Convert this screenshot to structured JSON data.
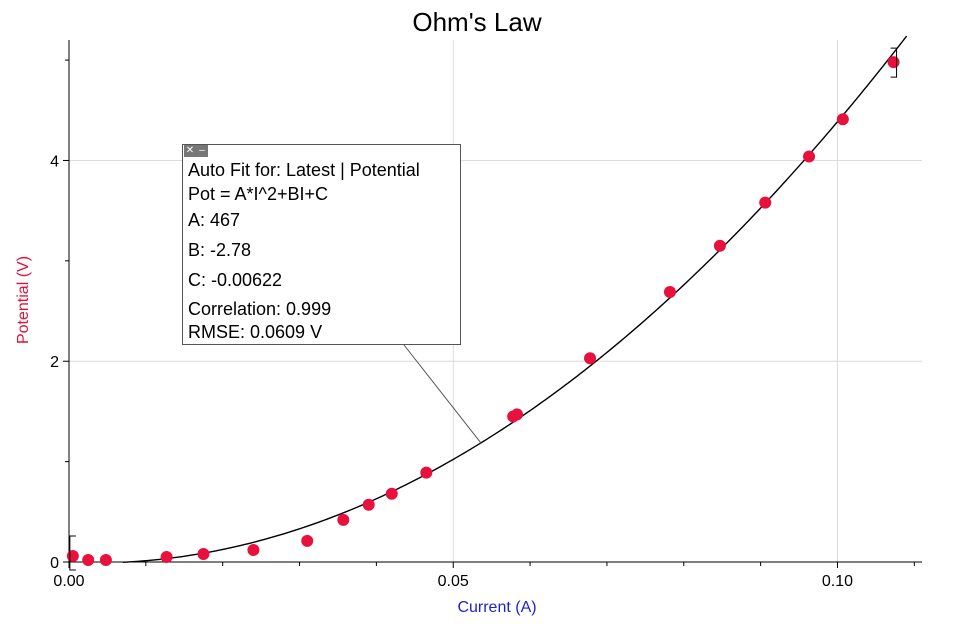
{
  "chart_data": {
    "type": "scatter",
    "title": "Ohm's Law",
    "xlabel": "Current (A)",
    "ylabel": "Potential (V)",
    "xlim": [
      0,
      0.111
    ],
    "ylim": [
      0,
      5.2
    ],
    "xticks": [
      0,
      0.05,
      0.1
    ],
    "xtick_labels": [
      "0.00",
      "0.05",
      "0.10"
    ],
    "yticks": [
      0,
      2,
      4
    ],
    "ytick_labels": [
      "0",
      "2",
      "4"
    ],
    "grid": true,
    "series": [
      {
        "color": "#e8103c",
        "points": [
          [
            0.0005,
            0.06
          ],
          [
            0.0025,
            0.02
          ],
          [
            0.0048,
            0.02
          ],
          [
            0.0127,
            0.05
          ],
          [
            0.0175,
            0.08
          ],
          [
            0.024,
            0.12
          ],
          [
            0.031,
            0.21
          ],
          [
            0.0357,
            0.42
          ],
          [
            0.039,
            0.57
          ],
          [
            0.042,
            0.68
          ],
          [
            0.0465,
            0.89
          ],
          [
            0.0578,
            1.45
          ],
          [
            0.0583,
            1.47
          ],
          [
            0.0678,
            2.03
          ],
          [
            0.0782,
            2.69
          ],
          [
            0.0847,
            3.15
          ],
          [
            0.0906,
            3.58
          ],
          [
            0.0963,
            4.04
          ],
          [
            0.1007,
            4.41
          ],
          [
            0.1073,
            4.98
          ]
        ]
      }
    ],
    "fit": {
      "equation": "Pot = A*I^2+BI+C",
      "A": 467,
      "B": -2.78,
      "C": -0.00622,
      "x_range": [
        0.007,
        0.109
      ]
    },
    "annotation": {
      "heading": "Auto Fit for: Latest | Potential",
      "equation": "Pot = A*I^2+BI+C",
      "a_line": "A: 467",
      "b_line": "B: -2.78",
      "c_line": "C: -0.00622",
      "correlation_line": "Correlation: 0.999",
      "rmse_line": "RMSE: 0.0609 V",
      "pointer_x": 0.0536
    }
  }
}
